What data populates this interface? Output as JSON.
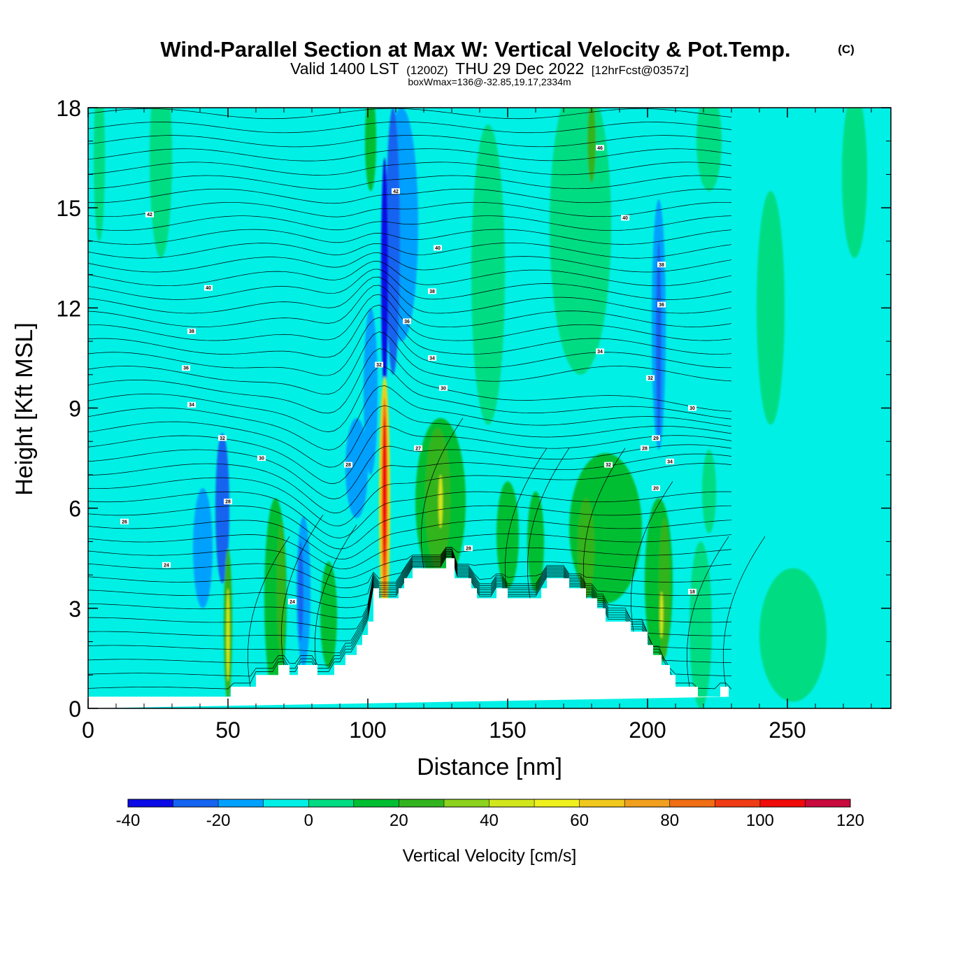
{
  "chart_data": {
    "type": "heatmap",
    "title": "Wind-Parallel Section at Max W: Vertical Velocity & Pot.Temp.",
    "title_mark": "(C)",
    "subtitle_main_a": "Valid 1400 LST",
    "subtitle_small_a": "(1200Z)",
    "subtitle_main_b": "THU 29 Dec 2022",
    "subtitle_small_b": "[12hrFcst@0357z]",
    "subtitle2": "boxWmax=136@-32.85,19.17,2334m",
    "xlabel": "Distance [nm]",
    "ylabel": "Height [Kft MSL]",
    "xlim": [
      0,
      287
    ],
    "ylim": [
      0,
      18
    ],
    "xticks": [
      0,
      50,
      100,
      150,
      200,
      250
    ],
    "yticks": [
      0,
      3,
      6,
      9,
      12,
      15,
      18
    ],
    "colorbar": {
      "title": "Vertical Velocity [cm/s]",
      "levels": [
        -40,
        -30,
        -20,
        -10,
        0,
        10,
        20,
        30,
        40,
        50,
        60,
        70,
        80,
        90,
        100,
        110,
        120
      ],
      "tick_labels": [
        "-40",
        "-20",
        "0",
        "20",
        "40",
        "60",
        "80",
        "100",
        "120"
      ],
      "tick_values": [
        -40,
        -20,
        0,
        20,
        40,
        60,
        80,
        100,
        120
      ],
      "colors": [
        "#0a0ae6",
        "#1464f0",
        "#00a0ff",
        "#00f0e6",
        "#00dc82",
        "#00be32",
        "#32b41e",
        "#8cd21e",
        "#d2e61e",
        "#f0f01e",
        "#f0c81e",
        "#f0a01e",
        "#f06e14",
        "#f03c14",
        "#f00a0a",
        "#c80a3c"
      ]
    },
    "background_color": "#00f0e6",
    "terrain": {
      "x": [
        0,
        51,
        51,
        60,
        60,
        68,
        68,
        72,
        72,
        75,
        75,
        82,
        82,
        88,
        88,
        92,
        92,
        96,
        96,
        98,
        98,
        100,
        100,
        102,
        102,
        104,
        104,
        111,
        111,
        113,
        113,
        116,
        116,
        128,
        128,
        131,
        131,
        137,
        137,
        139,
        139,
        146,
        146,
        150,
        150,
        162,
        162,
        164,
        164,
        172,
        172,
        178,
        178,
        182,
        182,
        185,
        185,
        194,
        194,
        200,
        200,
        202,
        202,
        205,
        205,
        208,
        208,
        210,
        210,
        218,
        218,
        226,
        226,
        229,
        229,
        231,
        231,
        240,
        240,
        287
      ],
      "y": [
        0.35,
        0.35,
        0.65,
        0.65,
        1.0,
        1.0,
        1.3,
        1.3,
        1.0,
        1.0,
        1.3,
        1.3,
        1.0,
        1.0,
        1.3,
        1.3,
        1.6,
        1.6,
        1.9,
        1.9,
        2.2,
        2.2,
        2.6,
        2.6,
        3.6,
        3.6,
        3.3,
        3.3,
        3.6,
        3.6,
        3.9,
        3.9,
        4.2,
        4.2,
        4.5,
        4.5,
        3.9,
        3.9,
        3.6,
        3.6,
        3.3,
        3.3,
        3.6,
        3.6,
        3.3,
        3.3,
        3.6,
        3.6,
        3.9,
        3.9,
        3.6,
        3.6,
        3.3,
        3.3,
        3.0,
        3.0,
        2.6,
        2.6,
        2.3,
        2.3,
        1.9,
        1.9,
        1.6,
        1.6,
        1.3,
        1.3,
        1.0,
        1.0,
        0.65,
        0.65,
        0.35,
        0.35,
        0.65,
        0.65,
        0.35,
        0.35
      ]
    },
    "w_features": [
      {
        "x": 4,
        "y": 16.5,
        "w": 4,
        "h": 5.0,
        "value": 5
      },
      {
        "x": 26,
        "y": 16.5,
        "w": 8,
        "h": 6.0,
        "value": 5
      },
      {
        "x": 48,
        "y": 6.0,
        "w": 5,
        "h": 4.5,
        "value": -25
      },
      {
        "x": 41,
        "y": 4.8,
        "w": 7,
        "h": 3.6,
        "value": -15
      },
      {
        "x": 50,
        "y": 2.5,
        "w": 3,
        "h": 4.6,
        "value": 20
      },
      {
        "x": 50,
        "y": 2.2,
        "w": 1.2,
        "h": 2.8,
        "value": 45
      },
      {
        "x": 67,
        "y": 3.3,
        "w": 8,
        "h": 6.0,
        "value": 10
      },
      {
        "x": 69,
        "y": 3.6,
        "w": 3,
        "h": 4.0,
        "value": 20
      },
      {
        "x": 77,
        "y": 3.5,
        "w": 5,
        "h": 4.5,
        "value": -15
      },
      {
        "x": 76,
        "y": 3.5,
        "w": 2,
        "h": 3.0,
        "value": -25
      },
      {
        "x": 86,
        "y": 2.8,
        "w": 6,
        "h": 3.2,
        "value": 15
      },
      {
        "x": 96,
        "y": 7.2,
        "w": 8,
        "h": 3.0,
        "value": -20
      },
      {
        "x": 101,
        "y": 9.5,
        "w": 5,
        "h": 5.0,
        "value": -15
      },
      {
        "x": 112,
        "y": 14.5,
        "w": 12,
        "h": 7.0,
        "value": -15
      },
      {
        "x": 109,
        "y": 14.0,
        "w": 5,
        "h": 8.0,
        "value": -25
      },
      {
        "x": 106,
        "y": 13.0,
        "w": 2.5,
        "h": 7.0,
        "value": -35
      },
      {
        "x": 101,
        "y": 17.0,
        "w": 4,
        "h": 3.0,
        "value": 10
      },
      {
        "x": 106,
        "y": 6.2,
        "w": 4,
        "h": 7.5,
        "value": 40
      },
      {
        "x": 106,
        "y": 6.2,
        "w": 3,
        "h": 7.0,
        "value": 60
      },
      {
        "x": 106,
        "y": 6.3,
        "w": 2,
        "h": 6.0,
        "value": 80
      },
      {
        "x": 106,
        "y": 6.5,
        "w": 1.5,
        "h": 4.5,
        "value": 105
      },
      {
        "x": 126,
        "y": 6.2,
        "w": 18,
        "h": 5.0,
        "value": 10
      },
      {
        "x": 125,
        "y": 6.3,
        "w": 9,
        "h": 4.2,
        "value": 20
      },
      {
        "x": 125,
        "y": 6.2,
        "w": 5,
        "h": 3.5,
        "value": 25
      },
      {
        "x": 126,
        "y": 6.2,
        "w": 1.5,
        "h": 1.6,
        "value": 40
      },
      {
        "x": 143,
        "y": 13.0,
        "w": 12,
        "h": 9.0,
        "value": 5
      },
      {
        "x": 150,
        "y": 5.2,
        "w": 8,
        "h": 3.2,
        "value": 15
      },
      {
        "x": 160,
        "y": 5.0,
        "w": 6,
        "h": 3.0,
        "value": 10
      },
      {
        "x": 176,
        "y": 14.5,
        "w": 22,
        "h": 9.0,
        "value": 5
      },
      {
        "x": 180,
        "y": 17.0,
        "w": 3,
        "h": 2.5,
        "value": 20
      },
      {
        "x": 185,
        "y": 5.4,
        "w": 26,
        "h": 4.5,
        "value": 10
      },
      {
        "x": 178,
        "y": 4.8,
        "w": 6,
        "h": 3.0,
        "value": 20
      },
      {
        "x": 204,
        "y": 11.5,
        "w": 5,
        "h": 7.5,
        "value": -15
      },
      {
        "x": 204,
        "y": 11.0,
        "w": 2,
        "h": 6.0,
        "value": -25
      },
      {
        "x": 204,
        "y": 3.8,
        "w": 10,
        "h": 5.0,
        "value": 15
      },
      {
        "x": 206,
        "y": 3.6,
        "w": 4,
        "h": 4.2,
        "value": 25
      },
      {
        "x": 205,
        "y": 2.8,
        "w": 1.2,
        "h": 1.4,
        "value": 45
      },
      {
        "x": 222,
        "y": 17.0,
        "w": 9,
        "h": 3.0,
        "value": 5
      },
      {
        "x": 222,
        "y": 6.5,
        "w": 5,
        "h": 2.5,
        "value": 5
      },
      {
        "x": 244,
        "y": 12.0,
        "w": 10,
        "h": 7.0,
        "value": 5
      },
      {
        "x": 274,
        "y": 16.0,
        "w": 9,
        "h": 5.0,
        "value": 5
      },
      {
        "x": 252,
        "y": 2.2,
        "w": 24,
        "h": 4.0,
        "value": 5
      },
      {
        "x": 219,
        "y": 2.5,
        "w": 8,
        "h": 5.0,
        "value": 5
      }
    ],
    "theta_contours": {
      "label_positions": [
        {
          "x": 22,
          "y": 14.8,
          "label": "42"
        },
        {
          "x": 43,
          "y": 12.6,
          "label": "40"
        },
        {
          "x": 37,
          "y": 11.3,
          "label": "38"
        },
        {
          "x": 35,
          "y": 10.2,
          "label": "36"
        },
        {
          "x": 37,
          "y": 9.1,
          "label": "34"
        },
        {
          "x": 48,
          "y": 8.1,
          "label": "32"
        },
        {
          "x": 62,
          "y": 7.5,
          "label": "30"
        },
        {
          "x": 50,
          "y": 6.2,
          "label": "28"
        },
        {
          "x": 13,
          "y": 5.6,
          "label": "26"
        },
        {
          "x": 28,
          "y": 4.3,
          "label": "24"
        },
        {
          "x": 73,
          "y": 3.2,
          "label": "24"
        },
        {
          "x": 93,
          "y": 7.3,
          "label": "28"
        },
        {
          "x": 104,
          "y": 10.3,
          "label": "32"
        },
        {
          "x": 110,
          "y": 15.5,
          "label": "42"
        },
        {
          "x": 125,
          "y": 13.8,
          "label": "40"
        },
        {
          "x": 123,
          "y": 12.5,
          "label": "38"
        },
        {
          "x": 114,
          "y": 11.6,
          "label": "36"
        },
        {
          "x": 123,
          "y": 10.5,
          "label": "34"
        },
        {
          "x": 127,
          "y": 9.6,
          "label": "30"
        },
        {
          "x": 118,
          "y": 7.8,
          "label": "27"
        },
        {
          "x": 136,
          "y": 4.8,
          "label": "28"
        },
        {
          "x": 183,
          "y": 16.8,
          "label": "46"
        },
        {
          "x": 192,
          "y": 14.7,
          "label": "40"
        },
        {
          "x": 205,
          "y": 13.3,
          "label": "38"
        },
        {
          "x": 205,
          "y": 12.1,
          "label": "36"
        },
        {
          "x": 183,
          "y": 10.7,
          "label": "34"
        },
        {
          "x": 201,
          "y": 9.9,
          "label": "32"
        },
        {
          "x": 216,
          "y": 9.0,
          "label": "30"
        },
        {
          "x": 203,
          "y": 8.1,
          "label": "29"
        },
        {
          "x": 199,
          "y": 7.8,
          "label": "28"
        },
        {
          "x": 186,
          "y": 7.3,
          "label": "32"
        },
        {
          "x": 208,
          "y": 7.4,
          "label": "34"
        },
        {
          "x": 203,
          "y": 6.6,
          "label": "20"
        },
        {
          "x": 216,
          "y": 3.5,
          "label": "18"
        }
      ]
    }
  }
}
